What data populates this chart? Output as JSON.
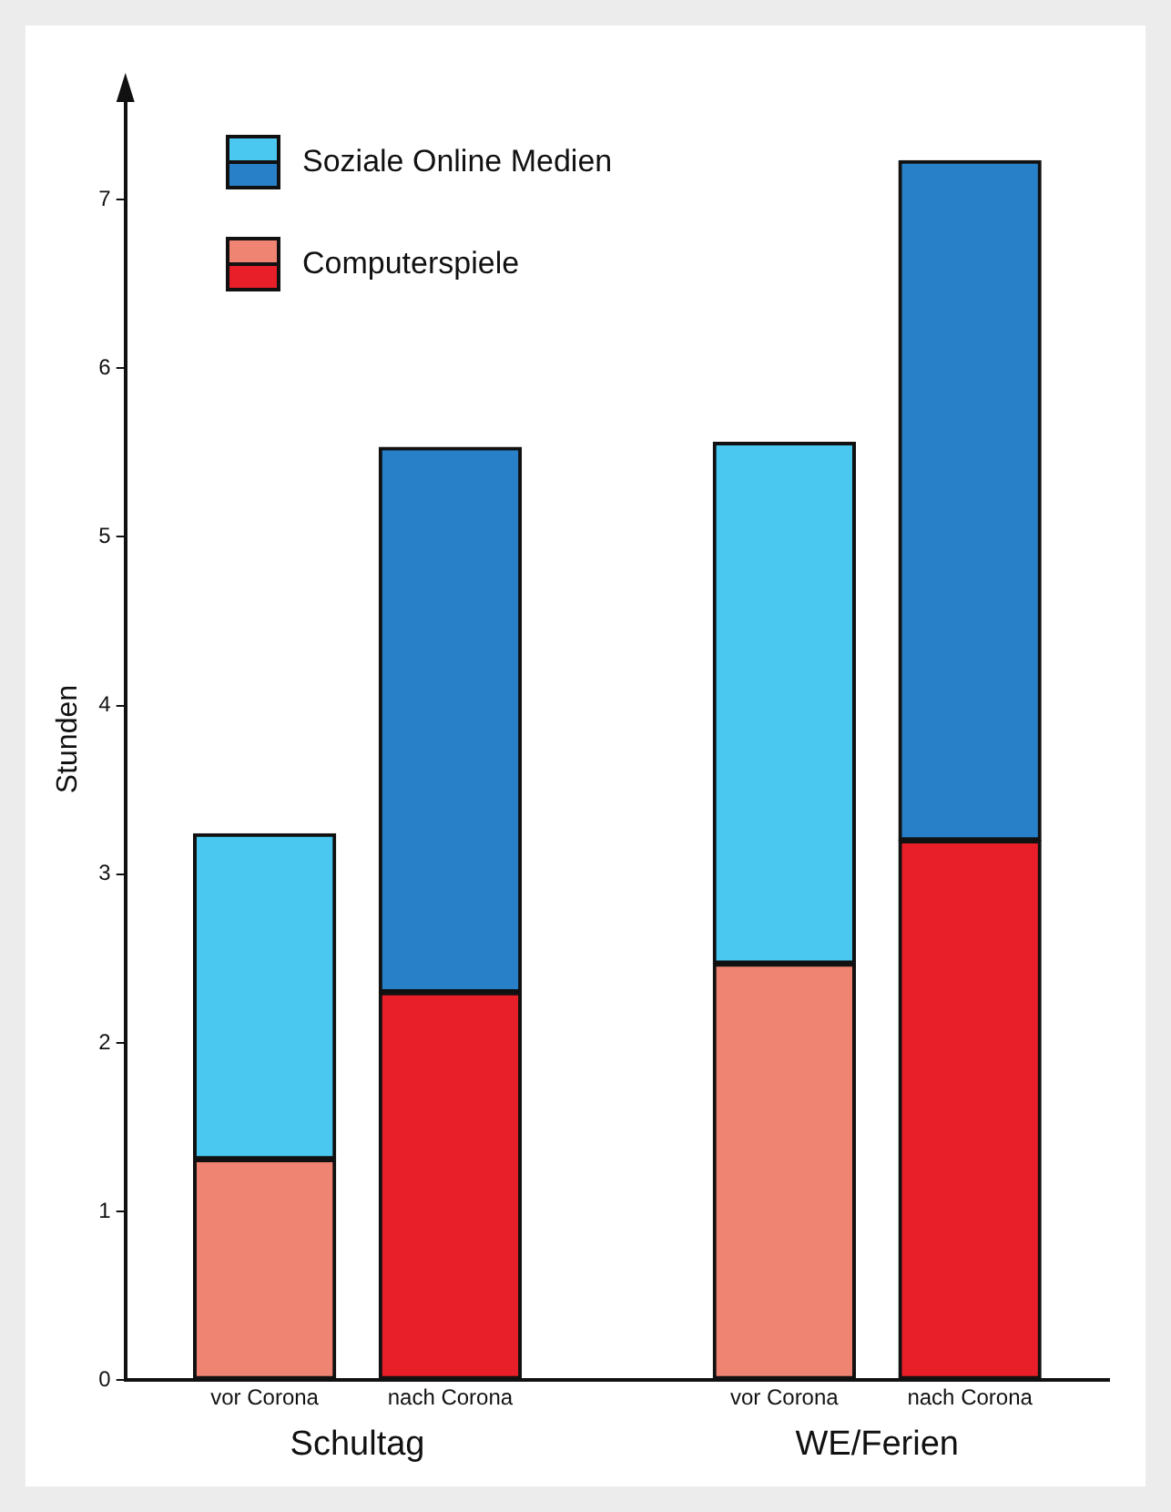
{
  "chart_data": {
    "type": "bar",
    "stacked": true,
    "ylabel": "Stunden",
    "categories": [
      "vor Corona",
      "nach Corona",
      "vor Corona",
      "nach Corona"
    ],
    "annotations": [
      "Schultag",
      "WE/Ferien"
    ],
    "series": [
      {
        "name": "Computerspiele",
        "color": "#e81e28",
        "colors": [
          "#f08472",
          "#e81e28",
          "#f08472",
          "#e81e28"
        ],
        "values": [
          1.31,
          2.3,
          2.47,
          3.2
        ]
      },
      {
        "name": "Soziale Online Medien",
        "color": "#2880c8",
        "colors": [
          "#4ac8f0",
          "#2880c8",
          "#4ac8f0",
          "#2880c8"
        ],
        "values": [
          1.93,
          3.23,
          3.09,
          4.03
        ]
      }
    ],
    "ylim": [
      0,
      7.6
    ],
    "yticks": [
      0,
      1,
      2,
      3,
      4,
      5,
      6,
      7
    ],
    "grid": false,
    "legend": "top left"
  }
}
